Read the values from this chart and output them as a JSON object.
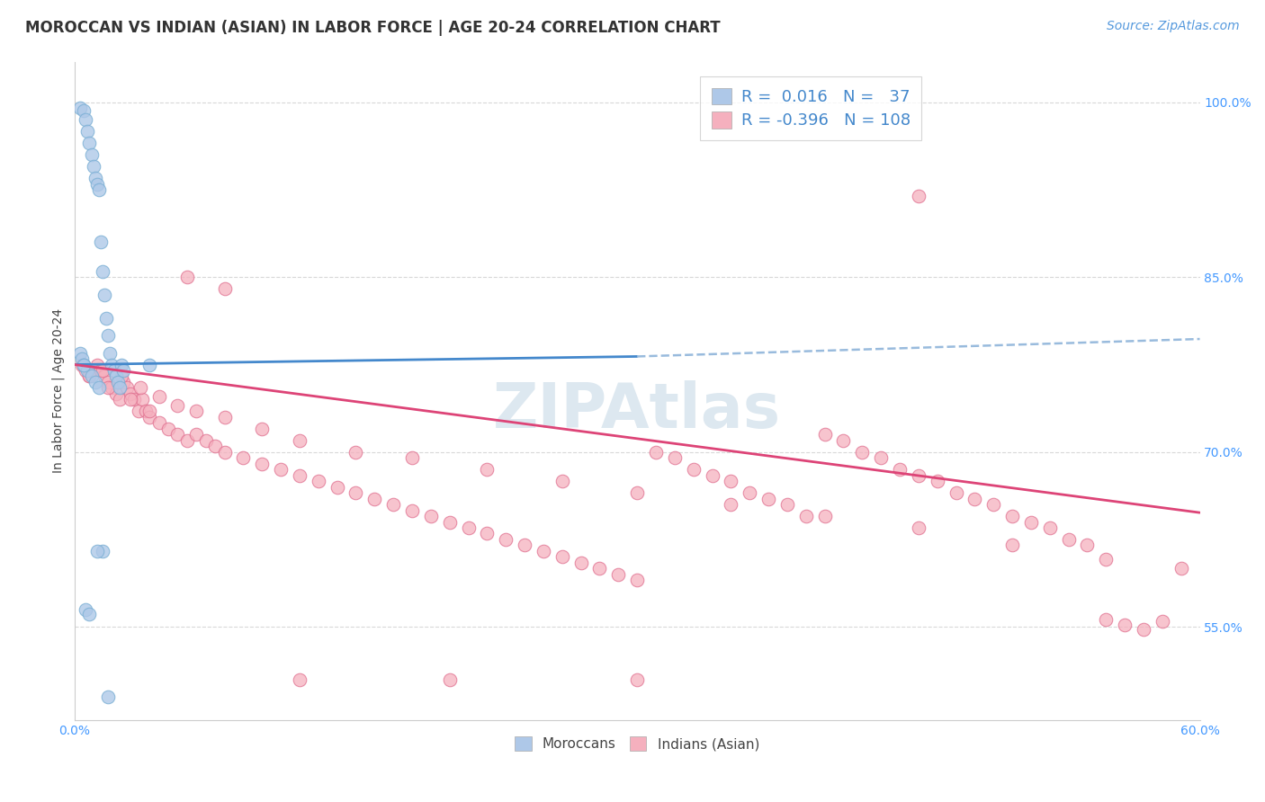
{
  "title": "MOROCCAN VS INDIAN (ASIAN) IN LABOR FORCE | AGE 20-24 CORRELATION CHART",
  "source": "Source: ZipAtlas.com",
  "ylabel": "In Labor Force | Age 20-24",
  "x_min": 0.0,
  "x_max": 0.6,
  "y_min": 0.47,
  "y_max": 1.035,
  "moroccan_R": 0.016,
  "moroccan_N": 37,
  "indian_R": -0.396,
  "indian_N": 108,
  "moroccan_color": "#aec8e8",
  "moroccan_edge_color": "#7aafd4",
  "indian_color": "#f5b0be",
  "indian_edge_color": "#e07090",
  "moroccan_line_color": "#4488cc",
  "indian_line_color": "#dd4477",
  "dash_line_color": "#99bbdd",
  "background_color": "#ffffff",
  "grid_color": "#d8d8d8",
  "tick_color": "#4499ff",
  "label_color": "#444444",
  "title_color": "#333333",
  "source_color": "#5599dd",
  "watermark_color": "#dde8f0",
  "legend_text_color": "#4488cc",
  "title_fontsize": 12,
  "label_fontsize": 10,
  "tick_fontsize": 10,
  "legend_fontsize": 13,
  "watermark_fontsize": 50,
  "source_fontsize": 10,
  "moroccan_x": [
    0.003,
    0.005,
    0.006,
    0.007,
    0.008,
    0.009,
    0.01,
    0.011,
    0.012,
    0.013,
    0.014,
    0.015,
    0.016,
    0.017,
    0.018,
    0.019,
    0.02,
    0.021,
    0.022,
    0.023,
    0.024,
    0.025,
    0.026,
    0.003,
    0.004,
    0.005,
    0.007,
    0.009,
    0.011,
    0.013,
    0.015,
    0.04,
    0.006,
    0.008,
    0.012,
    0.018,
    0.005
  ],
  "moroccan_y": [
    0.995,
    0.993,
    0.985,
    0.975,
    0.965,
    0.955,
    0.945,
    0.935,
    0.93,
    0.925,
    0.88,
    0.855,
    0.835,
    0.815,
    0.8,
    0.785,
    0.775,
    0.77,
    0.765,
    0.76,
    0.755,
    0.775,
    0.77,
    0.785,
    0.78,
    0.775,
    0.77,
    0.765,
    0.76,
    0.755,
    0.615,
    0.775,
    0.565,
    0.561,
    0.615,
    0.49,
    0.775
  ],
  "indian_x": [
    0.004,
    0.006,
    0.008,
    0.01,
    0.012,
    0.014,
    0.016,
    0.018,
    0.02,
    0.022,
    0.024,
    0.026,
    0.028,
    0.03,
    0.032,
    0.034,
    0.036,
    0.038,
    0.04,
    0.045,
    0.05,
    0.055,
    0.06,
    0.065,
    0.07,
    0.075,
    0.08,
    0.09,
    0.1,
    0.11,
    0.12,
    0.13,
    0.14,
    0.15,
    0.16,
    0.17,
    0.18,
    0.19,
    0.2,
    0.21,
    0.22,
    0.23,
    0.24,
    0.25,
    0.26,
    0.27,
    0.28,
    0.29,
    0.3,
    0.31,
    0.32,
    0.33,
    0.34,
    0.35,
    0.36,
    0.37,
    0.38,
    0.39,
    0.4,
    0.41,
    0.42,
    0.43,
    0.44,
    0.45,
    0.46,
    0.47,
    0.48,
    0.49,
    0.5,
    0.51,
    0.52,
    0.53,
    0.54,
    0.55,
    0.56,
    0.57,
    0.58,
    0.59,
    0.005,
    0.015,
    0.025,
    0.035,
    0.045,
    0.055,
    0.065,
    0.08,
    0.1,
    0.12,
    0.15,
    0.18,
    0.22,
    0.26,
    0.3,
    0.35,
    0.4,
    0.45,
    0.5,
    0.55,
    0.008,
    0.018,
    0.03,
    0.04,
    0.06,
    0.08,
    0.12,
    0.2,
    0.3,
    0.45
  ],
  "indian_y": [
    0.775,
    0.77,
    0.765,
    0.77,
    0.775,
    0.77,
    0.765,
    0.76,
    0.755,
    0.75,
    0.745,
    0.76,
    0.755,
    0.75,
    0.745,
    0.735,
    0.745,
    0.735,
    0.73,
    0.725,
    0.72,
    0.715,
    0.71,
    0.715,
    0.71,
    0.705,
    0.7,
    0.695,
    0.69,
    0.685,
    0.68,
    0.675,
    0.67,
    0.665,
    0.66,
    0.655,
    0.65,
    0.645,
    0.64,
    0.635,
    0.63,
    0.625,
    0.62,
    0.615,
    0.61,
    0.605,
    0.6,
    0.595,
    0.59,
    0.7,
    0.695,
    0.685,
    0.68,
    0.675,
    0.665,
    0.66,
    0.655,
    0.645,
    0.715,
    0.71,
    0.7,
    0.695,
    0.685,
    0.68,
    0.675,
    0.665,
    0.66,
    0.655,
    0.645,
    0.64,
    0.635,
    0.625,
    0.62,
    0.556,
    0.552,
    0.548,
    0.555,
    0.6,
    0.775,
    0.77,
    0.765,
    0.755,
    0.748,
    0.74,
    0.735,
    0.73,
    0.72,
    0.71,
    0.7,
    0.695,
    0.685,
    0.675,
    0.665,
    0.655,
    0.645,
    0.635,
    0.62,
    0.608,
    0.765,
    0.755,
    0.745,
    0.735,
    0.85,
    0.84,
    0.505,
    0.505,
    0.505,
    0.92
  ]
}
